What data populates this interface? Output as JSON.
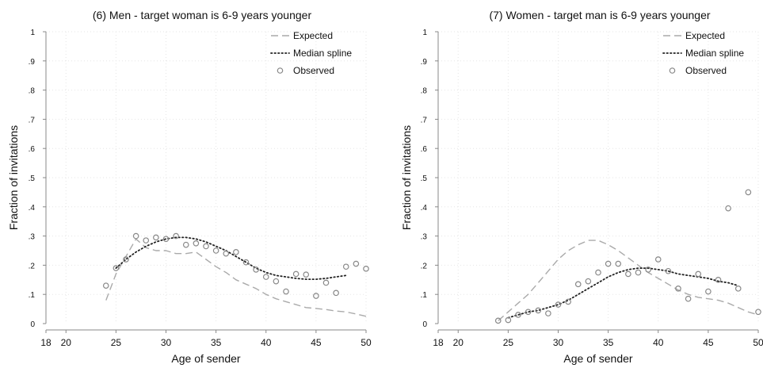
{
  "chart_data": [
    {
      "type": "line",
      "title": "(6) Men - target woman is 6-9 years younger",
      "xlabel": "Age of sender",
      "ylabel": "Fraction of invitations",
      "xlim": [
        18,
        50
      ],
      "ylim": [
        0,
        1
      ],
      "xticks": [
        "18",
        "20",
        "25",
        "30",
        "35",
        "40",
        "45",
        "50"
      ],
      "yticks": [
        "0",
        ".1",
        ".2",
        ".3",
        ".4",
        ".5",
        ".6",
        ".7",
        ".8",
        ".9",
        "1"
      ],
      "grid": true,
      "legend_position": "top-right",
      "legend": [
        "Expected",
        "Median spline",
        "Observed"
      ],
      "series": [
        {
          "name": "Expected",
          "style": "dashed",
          "color": "#aaaaaa",
          "x": [
            24,
            25,
            26,
            27,
            28,
            29,
            30,
            31,
            32,
            33,
            34,
            35,
            36,
            37,
            38,
            39,
            40,
            41,
            42,
            43,
            44,
            45,
            46,
            47,
            48,
            49,
            50
          ],
          "y": [
            0.08,
            0.17,
            0.23,
            0.29,
            0.26,
            0.25,
            0.25,
            0.24,
            0.24,
            0.245,
            0.22,
            0.195,
            0.175,
            0.15,
            0.135,
            0.12,
            0.1,
            0.085,
            0.075,
            0.065,
            0.055,
            0.052,
            0.048,
            0.043,
            0.04,
            0.033,
            0.025
          ]
        },
        {
          "name": "Median spline",
          "style": "dotted",
          "color": "#222222",
          "x": [
            25,
            26,
            27,
            28,
            29,
            30,
            31,
            32,
            33,
            34,
            35,
            36,
            37,
            38,
            39,
            40,
            41,
            42,
            43,
            44,
            45,
            46,
            47,
            48
          ],
          "y": [
            0.19,
            0.22,
            0.245,
            0.265,
            0.28,
            0.29,
            0.295,
            0.295,
            0.29,
            0.28,
            0.265,
            0.25,
            0.23,
            0.21,
            0.19,
            0.175,
            0.165,
            0.16,
            0.155,
            0.152,
            0.152,
            0.155,
            0.16,
            0.165
          ]
        },
        {
          "name": "Observed",
          "style": "markers",
          "color": "#888888",
          "x": [
            24,
            25,
            26,
            27,
            28,
            29,
            30,
            31,
            32,
            33,
            34,
            35,
            36,
            37,
            38,
            39,
            40,
            41,
            42,
            43,
            44,
            45,
            46,
            47,
            48,
            49,
            50
          ],
          "y": [
            0.13,
            0.19,
            0.22,
            0.3,
            0.285,
            0.295,
            0.29,
            0.3,
            0.27,
            0.275,
            0.265,
            0.25,
            0.24,
            0.245,
            0.21,
            0.185,
            0.16,
            0.145,
            0.11,
            0.17,
            0.168,
            0.095,
            0.14,
            0.105,
            0.195,
            0.205,
            0.188
          ]
        }
      ]
    },
    {
      "type": "line",
      "title": "(7) Women - target man is 6-9 years younger",
      "xlabel": "Age of sender",
      "ylabel": "Fraction of invitations",
      "xlim": [
        18,
        50
      ],
      "ylim": [
        0,
        1
      ],
      "xticks": [
        "18",
        "20",
        "25",
        "30",
        "35",
        "40",
        "45",
        "50"
      ],
      "yticks": [
        "0",
        ".1",
        ".2",
        ".3",
        ".4",
        ".5",
        ".6",
        ".7",
        ".8",
        ".9",
        "1"
      ],
      "grid": true,
      "legend_position": "top-right",
      "legend": [
        "Expected",
        "Median spline",
        "Observed"
      ],
      "series": [
        {
          "name": "Expected",
          "style": "dashed",
          "color": "#aaaaaa",
          "x": [
            24,
            25,
            26,
            27,
            28,
            29,
            30,
            31,
            32,
            33,
            34,
            35,
            36,
            37,
            38,
            39,
            40,
            41,
            42,
            43,
            44,
            45,
            46,
            47,
            48,
            49,
            50
          ],
          "y": [
            0.01,
            0.04,
            0.07,
            0.1,
            0.14,
            0.18,
            0.22,
            0.25,
            0.27,
            0.285,
            0.285,
            0.27,
            0.25,
            0.225,
            0.2,
            0.175,
            0.155,
            0.135,
            0.115,
            0.1,
            0.09,
            0.085,
            0.08,
            0.07,
            0.055,
            0.04,
            0.03
          ]
        },
        {
          "name": "Median spline",
          "style": "dotted",
          "color": "#222222",
          "x": [
            25,
            26,
            27,
            28,
            29,
            30,
            31,
            32,
            33,
            34,
            35,
            36,
            37,
            38,
            39,
            40,
            41,
            42,
            43,
            44,
            45,
            46,
            47,
            48
          ],
          "y": [
            0.02,
            0.03,
            0.04,
            0.045,
            0.055,
            0.065,
            0.08,
            0.1,
            0.12,
            0.14,
            0.16,
            0.175,
            0.185,
            0.19,
            0.19,
            0.185,
            0.18,
            0.17,
            0.165,
            0.16,
            0.155,
            0.145,
            0.14,
            0.13
          ]
        },
        {
          "name": "Observed",
          "style": "markers",
          "color": "#888888",
          "x": [
            24,
            25,
            26,
            27,
            28,
            29,
            30,
            31,
            32,
            33,
            34,
            35,
            36,
            37,
            38,
            39,
            40,
            41,
            42,
            43,
            44,
            45,
            46,
            47,
            48,
            49,
            50
          ],
          "y": [
            0.01,
            0.012,
            0.03,
            0.04,
            0.045,
            0.035,
            0.065,
            0.075,
            0.135,
            0.145,
            0.175,
            0.205,
            0.205,
            0.17,
            0.175,
            0.185,
            0.22,
            0.18,
            0.12,
            0.085,
            0.17,
            0.11,
            0.15,
            0.395,
            0.12,
            0.45,
            0.04
          ]
        }
      ]
    }
  ]
}
